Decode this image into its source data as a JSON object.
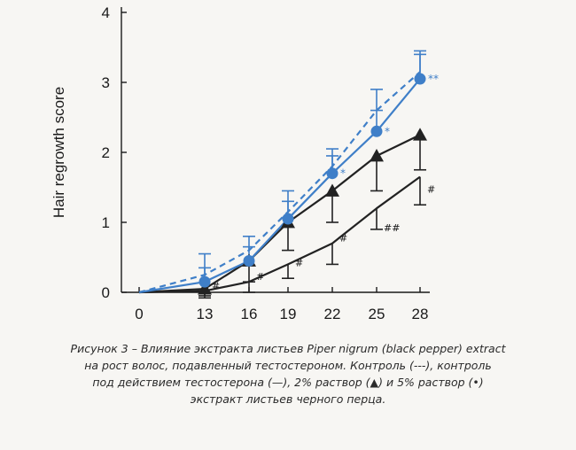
{
  "chart_data": {
    "type": "line",
    "ylabel": "Hair regrowth score",
    "xlabel": "",
    "x": [
      0,
      13,
      16,
      19,
      22,
      25,
      28
    ],
    "ylim": [
      0,
      4
    ],
    "yticks": [
      0,
      1,
      2,
      3,
      4
    ],
    "grid": false,
    "legend": "none",
    "series": [
      {
        "values": [
          0,
          0.25,
          0.6,
          1.15,
          1.8,
          2.6,
          3.15
        ],
        "errors": [
          0,
          0.3,
          0.2,
          0.3,
          0.25,
          0.3,
          0.3
        ],
        "style": "dashed",
        "marker": "none",
        "color": "#3f7fc8"
      },
      {
        "values": [
          0,
          0.02,
          0.15,
          0.4,
          0.7,
          1.2,
          1.65
        ],
        "errors": [
          0,
          0.1,
          0.15,
          0.2,
          0.3,
          0.3,
          0.4
        ],
        "style": "solid",
        "marker": "none",
        "color": "#222222"
      },
      {
        "values": [
          0,
          0.05,
          0.45,
          1.0,
          1.45,
          1.95,
          2.25
        ],
        "errors": [
          0,
          0.1,
          0.3,
          0.4,
          0.45,
          0.5,
          0.5
        ],
        "style": "solid",
        "marker": "triangle",
        "color": "#222222"
      },
      {
        "values": [
          0,
          0.15,
          0.45,
          1.05,
          1.7,
          2.3,
          3.05
        ],
        "errors": [
          0,
          0.2,
          0.2,
          0.25,
          0.25,
          0.3,
          0.35
        ],
        "style": "solid",
        "marker": "circle",
        "color": "#3f7fc8"
      }
    ],
    "annotations": {
      "control_marks": [
        {
          "x": 13,
          "y": 0.02,
          "text": "#"
        },
        {
          "x": 16,
          "y": 0.15,
          "text": "#"
        },
        {
          "x": 19,
          "y": 0.35,
          "text": "#"
        },
        {
          "x": 22,
          "y": 0.7,
          "text": "#"
        },
        {
          "x": 25,
          "y": 0.85,
          "text": "##"
        },
        {
          "x": 28,
          "y": 1.4,
          "text": "#"
        }
      ],
      "extract_marks": [
        {
          "x": 22,
          "y": 1.7,
          "text": "*"
        },
        {
          "x": 25,
          "y": 2.3,
          "text": "*"
        },
        {
          "x": 28,
          "y": 3.05,
          "text": "**"
        }
      ]
    }
  },
  "caption": {
    "line1": "Рисунок 3 – Влияние экстракта листьев Piper nigrum (black pepper) extract",
    "line2": "на рост волос, подавленный тестостероном. Контроль (---), контроль",
    "line3": "под действием тестостерона (—), 2% раствор (▲) и 5% раствор (•)",
    "line4": "экстракт листьев черного перца."
  }
}
